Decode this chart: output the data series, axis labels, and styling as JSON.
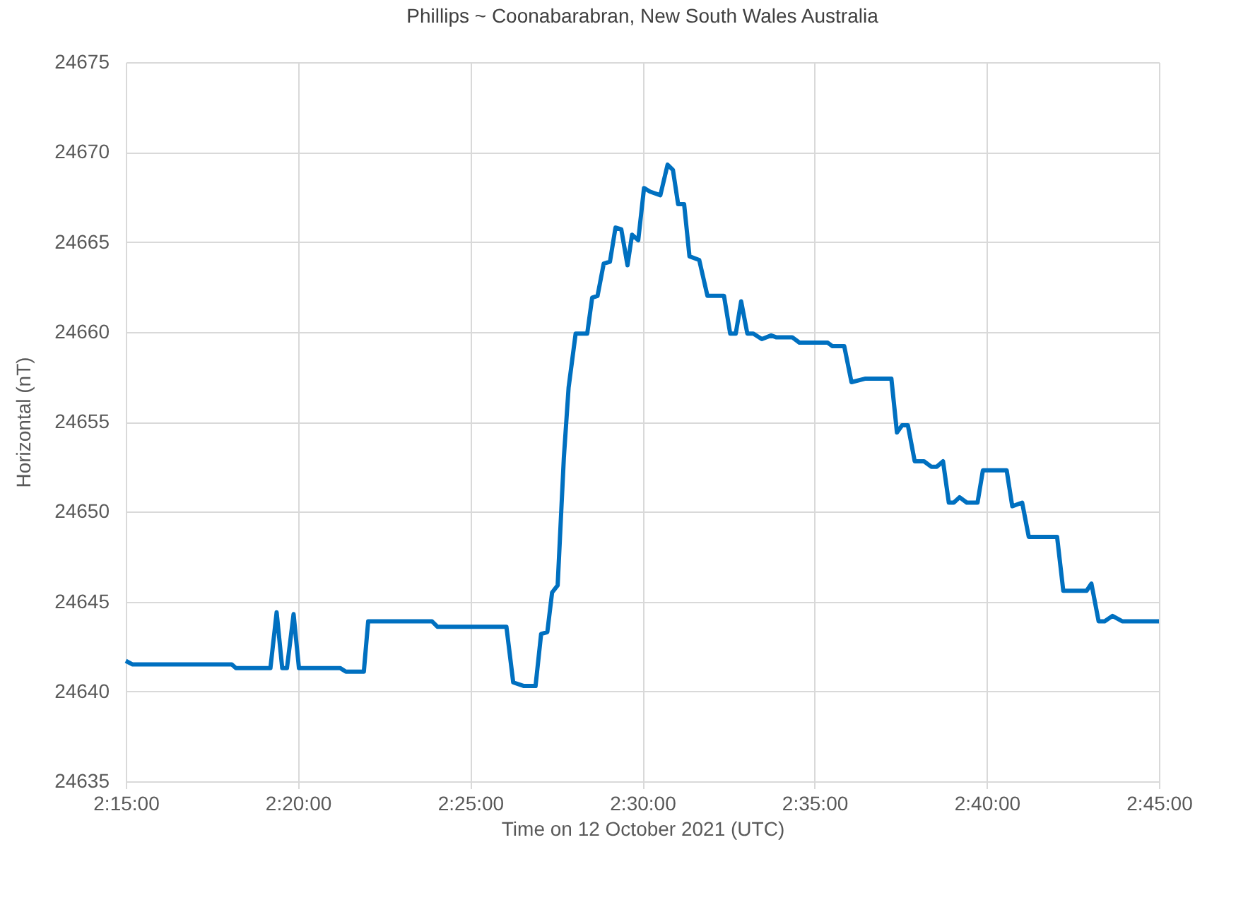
{
  "chart_data": {
    "type": "line",
    "title": "Phillips ~ Coonabarabran, New South Wales Australia",
    "xlabel": "Time on 12 October 2021 (UTC)",
    "ylabel": "Horizontal (nT)",
    "x": [
      2.25,
      2.2533,
      2.3013,
      2.3033,
      2.32,
      2.323,
      2.3257,
      2.328,
      2.3312,
      2.3338,
      2.3537,
      2.3565,
      2.3652,
      2.3673,
      2.3982,
      2.4008,
      2.4342,
      2.4375,
      2.4427,
      2.4483,
      2.451,
      2.454,
      2.4563,
      2.459,
      2.462,
      2.4643,
      2.4677,
      2.4733,
      2.4757,
      2.4783,
      2.4813,
      2.4843,
      2.487,
      2.4898,
      2.4928,
      2.495,
      2.498,
      2.5008,
      2.5037,
      2.5087,
      2.5122,
      2.5148,
      2.5173,
      2.5202,
      2.5228,
      2.5275,
      2.5315,
      2.5395,
      2.5425,
      2.5452,
      2.5478,
      2.5508,
      2.5537,
      2.5578,
      2.5623,
      2.5647,
      2.5725,
      2.576,
      2.5897,
      2.592,
      2.5977,
      2.6012,
      2.608,
      2.6205,
      2.6232,
      2.6257,
      2.6285,
      2.6318,
      2.6363,
      2.6398,
      2.6425,
      2.6455,
      2.6483,
      2.6507,
      2.6535,
      2.657,
      2.6622,
      2.6648,
      2.6763,
      2.679,
      2.6838,
      2.687,
      2.7007,
      2.7037,
      2.715,
      2.7173,
      2.7208,
      2.7237,
      2.7275,
      2.7322,
      2.75
    ],
    "series": [
      {
        "color": "#0070c0",
        "values": [
          24641.7,
          24641.5,
          24641.5,
          24641.3,
          24641.3,
          24644.4,
          24641.3,
          24641.3,
          24644.3,
          24641.3,
          24641.3,
          24641.1,
          24641.1,
          24643.9,
          24643.9,
          24643.6,
          24643.6,
          24640.5,
          24640.3,
          24640.3,
          24643.2,
          24643.3,
          24645.5,
          24645.9,
          24653.0,
          24656.9,
          24659.9,
          24659.9,
          24661.9,
          24662.0,
          24663.8,
          24663.9,
          24665.8,
          24665.7,
          24663.7,
          24665.4,
          24665.1,
          24668.0,
          24667.8,
          24667.6,
          24669.3,
          24669.0,
          24667.1,
          24667.1,
          24664.2,
          24664.0,
          24662.0,
          24662.0,
          24659.9,
          24659.9,
          24661.7,
          24659.9,
          24659.9,
          24659.6,
          24659.8,
          24659.7,
          24659.7,
          24659.4,
          24659.4,
          24659.2,
          24659.2,
          24657.2,
          24657.4,
          24657.4,
          24654.4,
          24654.8,
          24654.8,
          24652.8,
          24652.8,
          24652.5,
          24652.5,
          24652.8,
          24650.5,
          24650.5,
          24650.8,
          24650.5,
          24650.5,
          24652.3,
          24652.3,
          24650.3,
          24650.5,
          24648.6,
          24648.6,
          24645.6,
          24645.6,
          24646.0,
          24643.9,
          24643.9,
          24644.2,
          24643.9,
          24643.9
        ]
      }
    ],
    "xlim": [
      2.25,
      2.75
    ],
    "xticks": [
      {
        "value": 2.25,
        "label": "2:15:00"
      },
      {
        "value": 2.3333,
        "label": "2:20:00"
      },
      {
        "value": 2.4167,
        "label": "2:25:00"
      },
      {
        "value": 2.5,
        "label": "2:30:00"
      },
      {
        "value": 2.5833,
        "label": "2:35:00"
      },
      {
        "value": 2.6667,
        "label": "2:40:00"
      },
      {
        "value": 2.75,
        "label": "2:45:00"
      }
    ],
    "ylim": [
      24635,
      24675
    ],
    "yticks": [
      24635,
      24640,
      24645,
      24650,
      24655,
      24660,
      24665,
      24670,
      24675
    ],
    "grid": true,
    "marker": "none",
    "line_style": "solid"
  }
}
